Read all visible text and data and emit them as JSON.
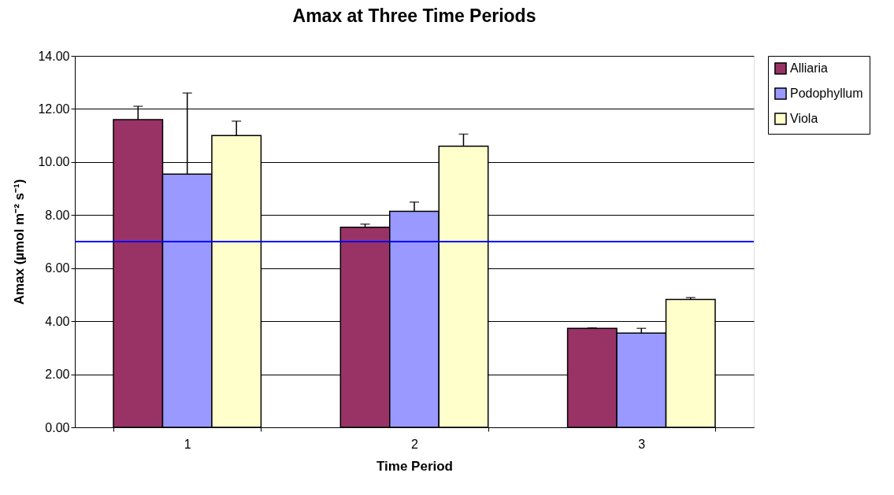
{
  "chart_data": {
    "type": "bar",
    "title": "Amax at Three Time Periods",
    "xlabel": "Time Period",
    "ylabel": "Amax (µmol m⁻² s⁻¹)",
    "categories": [
      "1",
      "2",
      "3"
    ],
    "series": [
      {
        "name": "Alliaria",
        "color": "#993366",
        "values": [
          11.6,
          7.54,
          3.73
        ],
        "errors": [
          0.5,
          0.12,
          0.02
        ]
      },
      {
        "name": "Podophyllum",
        "color": "#9999ff",
        "values": [
          9.54,
          8.14,
          3.55
        ],
        "errors": [
          3.06,
          0.35,
          0.18
        ]
      },
      {
        "name": "Viola",
        "color": "#ffffcc",
        "values": [
          11.0,
          10.6,
          4.82
        ],
        "errors": [
          0.54,
          0.45,
          0.07
        ]
      }
    ],
    "ylim": [
      0,
      14
    ],
    "yticks": [
      {
        "value": 0,
        "label": "0.00"
      },
      {
        "value": 2,
        "label": "2.00"
      },
      {
        "value": 4,
        "label": "4.00"
      },
      {
        "value": 6,
        "label": "6.00"
      },
      {
        "value": 8,
        "label": "8.00"
      },
      {
        "value": 10,
        "label": "10.00"
      },
      {
        "value": 12,
        "label": "12.00"
      },
      {
        "value": 14,
        "label": "14.00"
      }
    ],
    "ref_lines": [
      {
        "axis": "y",
        "value": 7.0,
        "color": "#0000ff"
      }
    ],
    "grid": "y",
    "legend": "right"
  }
}
